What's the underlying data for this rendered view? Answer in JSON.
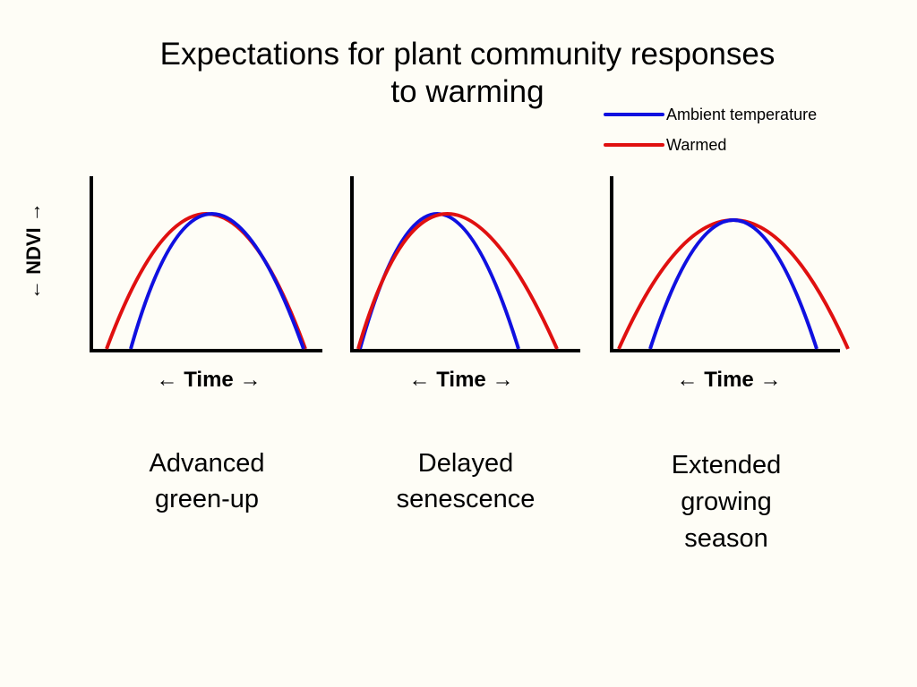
{
  "title": {
    "line1": "Expectations for plant community responses",
    "line2": "to warming"
  },
  "legend": {
    "ambient": {
      "label": "Ambient temperature",
      "color": "#1010e0"
    },
    "warmed": {
      "label": "Warmed",
      "color": "#e01010"
    }
  },
  "y_label": "← NDVI →",
  "panels": [
    {
      "x_label": "← Time →",
      "caption": [
        "Advanced",
        "green-up"
      ]
    },
    {
      "x_label": "← Time →",
      "caption": [
        "Delayed",
        "senescence"
      ]
    },
    {
      "x_label": "← Time →",
      "caption": [
        "Extended",
        "growing",
        "season"
      ]
    }
  ]
}
